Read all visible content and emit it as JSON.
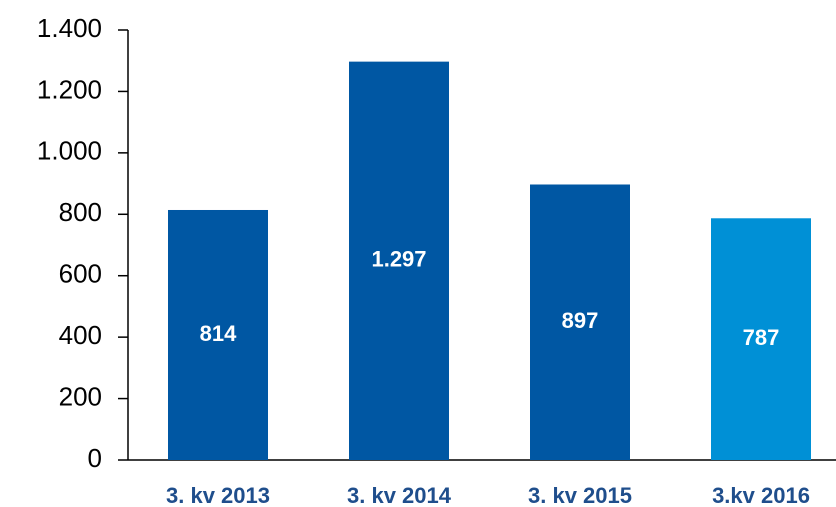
{
  "chart_data": {
    "type": "bar",
    "categories": [
      "3. kv 2013",
      "3. kv 2014",
      "3. kv 2015",
      "3.kv 2016"
    ],
    "values": [
      814,
      1297,
      897,
      787
    ],
    "value_labels": [
      "814",
      "1.297",
      "897",
      "787"
    ],
    "colors": [
      "#0057a3",
      "#0057a3",
      "#0057a3",
      "#0090d6"
    ],
    "ylim": [
      0,
      1400
    ],
    "yticks": [
      0,
      200,
      400,
      600,
      800,
      {
        "value": 1000,
        "label": "1.000"
      },
      {
        "value": 1200,
        "label": "1.200"
      },
      {
        "value": 1400,
        "label": "1.400"
      }
    ]
  }
}
